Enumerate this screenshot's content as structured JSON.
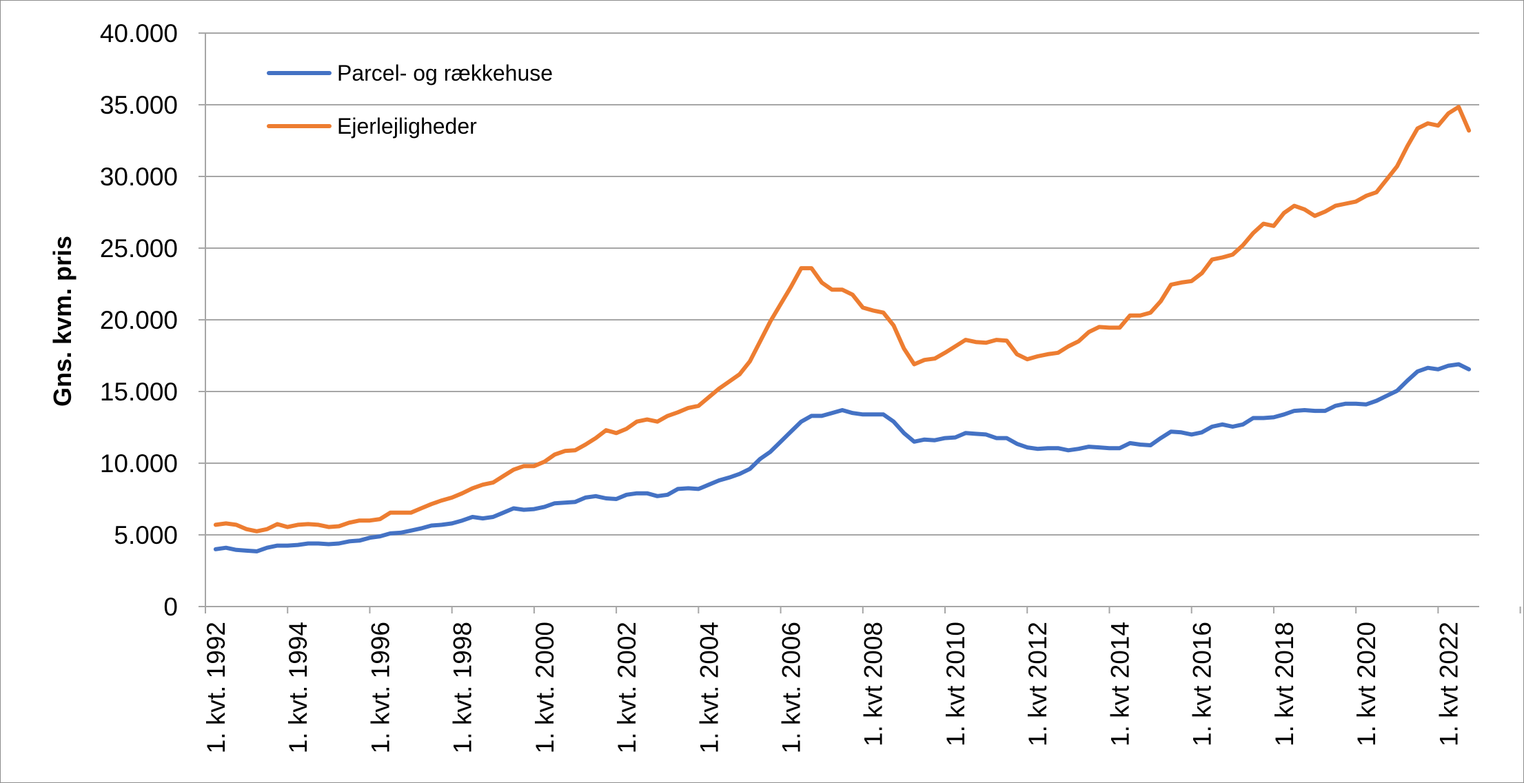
{
  "chart_data": {
    "type": "line",
    "title": "",
    "xlabel": "",
    "ylabel": "Gns. kvm. pris",
    "ylim": [
      0,
      40000
    ],
    "y_ticks": [
      0,
      5000,
      10000,
      15000,
      20000,
      25000,
      30000,
      35000,
      40000
    ],
    "y_tick_labels": [
      "0",
      "5.000",
      "10.000",
      "15.000",
      "20.000",
      "25.000",
      "30.000",
      "35.000",
      "40.000"
    ],
    "x_start": "1992 Q1",
    "x_end": "2022 Q3",
    "x_tick_labels": [
      "1. kvt. 1992",
      "1. kvt. 1994",
      "1. kvt. 1996",
      "1. kvt. 1998",
      "1. kvt. 2000",
      "1. kvt. 2002",
      "1. kvt. 2004",
      "1. kvt. 2006",
      "1. kvt 2008",
      "1. kvt 2010",
      "1. kvt 2012",
      "1. kvt 2014",
      "1. kvt 2016",
      "1. kvt 2018",
      "1. kvt 2020",
      "1. kvt 2022"
    ],
    "grid": true,
    "legend_position": "top-left",
    "series": [
      {
        "name": "Parcel- og rækkehuse",
        "color": "#4472C4",
        "values": [
          4000,
          4100,
          3950,
          3900,
          3850,
          4100,
          4250,
          4250,
          4300,
          4400,
          4400,
          4350,
          4400,
          4550,
          4600,
          4800,
          4900,
          5100,
          5150,
          5300,
          5450,
          5650,
          5700,
          5800,
          6000,
          6250,
          6150,
          6250,
          6550,
          6850,
          6750,
          6800,
          6950,
          7200,
          7250,
          7300,
          7600,
          7700,
          7550,
          7500,
          7800,
          7900,
          7900,
          7700,
          7800,
          8200,
          8250,
          8200,
          8500,
          8800,
          9000,
          9250,
          9600,
          10300,
          10800,
          11500,
          12200,
          12900,
          13300,
          13300,
          13500,
          13700,
          13500,
          13400,
          13400,
          13400,
          12900,
          12100,
          11500,
          11650,
          11600,
          11750,
          11800,
          12100,
          12050,
          12000,
          11750,
          11750,
          11350,
          11100,
          11000,
          11050,
          11050,
          10900,
          11000,
          11150,
          11100,
          11050,
          11050,
          11400,
          11300,
          11250,
          11750,
          12200,
          12150,
          12000,
          12150,
          12550,
          12700,
          12550,
          12700,
          13150,
          13150,
          13200,
          13400,
          13650,
          13700,
          13650,
          13650,
          14000,
          14150,
          14150,
          14100,
          14350,
          14700,
          15050,
          15750,
          16400,
          16650,
          16550,
          16800,
          16900,
          16550
        ]
      },
      {
        "name": "Ejerlejligheder",
        "color": "#ED7D31",
        "values": [
          5700,
          5800,
          5700,
          5400,
          5250,
          5400,
          5750,
          5550,
          5700,
          5750,
          5700,
          5550,
          5600,
          5850,
          6000,
          6000,
          6100,
          6550,
          6550,
          6550,
          6850,
          7150,
          7400,
          7600,
          7900,
          8250,
          8500,
          8650,
          9100,
          9550,
          9800,
          9800,
          10100,
          10600,
          10850,
          10900,
          11300,
          11750,
          12300,
          12100,
          12400,
          12900,
          13050,
          12900,
          13300,
          13550,
          13850,
          14000,
          14600,
          15200,
          15700,
          16200,
          17100,
          18500,
          19900,
          21100,
          22300,
          23600,
          23600,
          22600,
          22100,
          22100,
          21750,
          20850,
          20650,
          20500,
          19600,
          18000,
          16900,
          17200,
          17300,
          17700,
          18150,
          18600,
          18450,
          18400,
          18600,
          18550,
          17600,
          17250,
          17450,
          17600,
          17700,
          18150,
          18500,
          19150,
          19500,
          19450,
          19450,
          20300,
          20300,
          20500,
          21300,
          22450,
          22600,
          22700,
          23250,
          24200,
          24350,
          24550,
          25200,
          26050,
          26700,
          26550,
          27450,
          27950,
          27700,
          27250,
          27550,
          27950,
          28100,
          28250,
          28650,
          28900,
          29800,
          30700,
          32100,
          33350,
          33700,
          33550,
          34400,
          34850,
          33200
        ]
      }
    ]
  }
}
